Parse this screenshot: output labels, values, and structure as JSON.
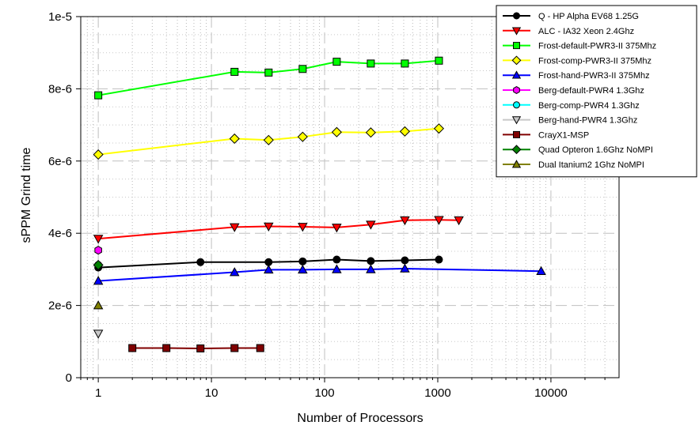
{
  "chart_data": {
    "type": "line",
    "title": "",
    "xlabel": "Number of Processors",
    "ylabel": "sPPM Grind time",
    "x_scale": "log",
    "xlim": [
      0.7,
      40000
    ],
    "ylim": [
      0,
      1e-05
    ],
    "x_ticks": [
      {
        "value": 1,
        "label": "1"
      },
      {
        "value": 10,
        "label": "10"
      },
      {
        "value": 100,
        "label": "100"
      },
      {
        "value": 1000,
        "label": "1000"
      },
      {
        "value": 10000,
        "label": "10000"
      }
    ],
    "y_ticks": [
      {
        "value": 0,
        "label": "0"
      },
      {
        "value": 2e-06,
        "label": "2e-6"
      },
      {
        "value": 4e-06,
        "label": "4e-6"
      },
      {
        "value": 6e-06,
        "label": "6e-6"
      },
      {
        "value": 8e-06,
        "label": "8e-6"
      },
      {
        "value": 1e-05,
        "label": "1e-5"
      }
    ],
    "grid": true,
    "legend_position": "top-right",
    "series": [
      {
        "name": "Q - HP Alpha EV68 1.25G",
        "color": "#000000",
        "marker": "circle",
        "x": [
          1,
          8,
          32,
          64,
          128,
          256,
          512,
          1024
        ],
        "y": [
          3.05e-06,
          3.2e-06,
          3.2e-06,
          3.22e-06,
          3.27e-06,
          3.23e-06,
          3.25e-06,
          3.27e-06
        ]
      },
      {
        "name": "ALC - IA32 Xeon 2.4Ghz",
        "color": "#ff0000",
        "marker": "triangle-down",
        "x": [
          1,
          16,
          32,
          64,
          128,
          256,
          512,
          1024,
          1536
        ],
        "y": [
          3.85e-06,
          4.17e-06,
          4.19e-06,
          4.18e-06,
          4.16e-06,
          4.24e-06,
          4.36e-06,
          4.37e-06,
          4.36e-06
        ]
      },
      {
        "name": "Frost-default-PWR3-II 375Mhz",
        "color": "#00ff00",
        "marker": "square",
        "x": [
          1,
          16,
          32,
          64,
          128,
          256,
          512,
          1024
        ],
        "y": [
          7.82e-06,
          8.47e-06,
          8.45e-06,
          8.55e-06,
          8.75e-06,
          8.7e-06,
          8.7e-06,
          8.78e-06
        ]
      },
      {
        "name": "Frost-comp-PWR3-II 375Mhz",
        "color": "#ffff00",
        "marker": "diamond",
        "x": [
          1,
          16,
          32,
          64,
          128,
          256,
          512,
          1024
        ],
        "y": [
          6.18e-06,
          6.62e-06,
          6.58e-06,
          6.67e-06,
          6.8e-06,
          6.79e-06,
          6.82e-06,
          6.9e-06
        ]
      },
      {
        "name": "Frost-hand-PWR3-II 375Mhz",
        "color": "#0000ff",
        "marker": "triangle-up",
        "x": [
          1,
          16,
          32,
          64,
          128,
          256,
          512,
          8192
        ],
        "y": [
          2.68e-06,
          2.92e-06,
          2.99e-06,
          2.99e-06,
          3e-06,
          3e-06,
          3.02e-06,
          2.95e-06
        ]
      },
      {
        "name": "Berg-default-PWR4 1.3Ghz",
        "color": "#ff00ff",
        "marker": "hexagon",
        "x": [
          1
        ],
        "y": [
          3.53e-06
        ]
      },
      {
        "name": "Berg-comp-PWR4 1.3Ghz",
        "color": "#00ffff",
        "marker": "circle",
        "x": [
          1
        ],
        "y": [
          3.12e-06
        ]
      },
      {
        "name": "Berg-hand-PWR4 1.3Ghz",
        "color": "#c8c8c8",
        "marker": "triangle-down",
        "x": [
          1
        ],
        "y": [
          1.22e-06
        ]
      },
      {
        "name": "CrayX1-MSP",
        "color": "#800000",
        "marker": "square",
        "x": [
          2,
          4,
          8,
          16,
          27
        ],
        "y": [
          8.2e-07,
          8.2e-07,
          8.1e-07,
          8.2e-07,
          8.2e-07
        ]
      },
      {
        "name": "Quad Opteron 1.6Ghz NoMPI",
        "color": "#008000",
        "marker": "diamond",
        "x": [
          1
        ],
        "y": [
          3.12e-06
        ]
      },
      {
        "name": "Dual Itanium2 1Ghz NoMPI",
        "color": "#808000",
        "marker": "triangle-up",
        "x": [
          1
        ],
        "y": [
          2e-06
        ]
      }
    ]
  }
}
